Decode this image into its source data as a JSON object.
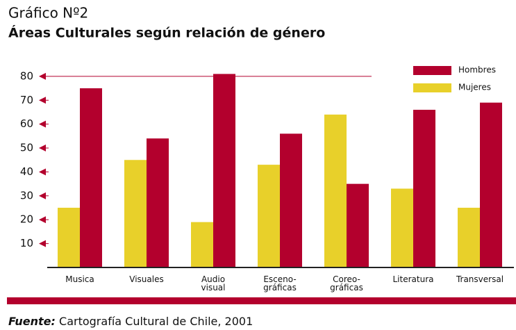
{
  "chart_data": {
    "type": "bar",
    "title": "Gráfico Nº2",
    "subtitle": "Áreas Culturales según relación de género",
    "categories": [
      "Musica",
      "Visuales",
      "Audio\nvisual",
      "Esceno-\ngráficas",
      "Coreo-\ngráficas",
      "Literatura",
      "Transversal"
    ],
    "series": [
      {
        "name": "Hombres",
        "color": "#b3002d",
        "values": [
          75,
          54,
          81,
          56,
          35,
          66,
          69
        ]
      },
      {
        "name": "Mujeres",
        "color": "#e8d02a",
        "values": [
          25,
          45,
          19,
          43,
          64,
          33,
          25
        ]
      }
    ],
    "ylim": [
      0,
      82
    ],
    "yticks": [
      10,
      20,
      30,
      40,
      50,
      60,
      70,
      80
    ],
    "legend": "top-right",
    "source_label": "Fuente:",
    "source": "Cartografía Cultural de Chile, 2001"
  }
}
